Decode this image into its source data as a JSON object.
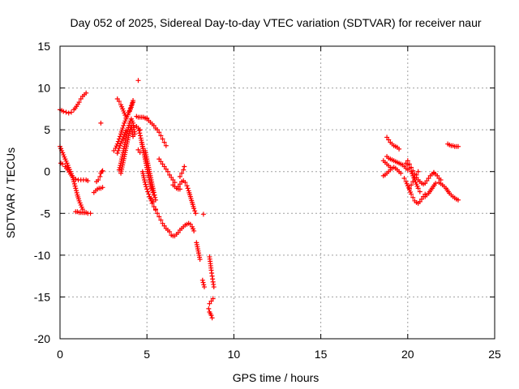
{
  "chart_data": {
    "type": "scatter",
    "title": "Day 052 of 2025, Sidereal Day-to-day VTEC variation (SDTVAR) for receiver naur",
    "xlabel": "GPS time / hours",
    "ylabel": "SDTVAR / TECUs",
    "xlim": [
      0,
      25
    ],
    "ylim": [
      -20,
      15
    ],
    "xticks": [
      0,
      5,
      10,
      15,
      20,
      25
    ],
    "yticks": [
      -20,
      -15,
      -10,
      -5,
      0,
      5,
      10,
      15
    ],
    "xtick_labels": [
      "0",
      "5",
      "10",
      "15",
      "20",
      "25"
    ],
    "ytick_labels": [
      "-20",
      "-15",
      "-10",
      "-5",
      "0",
      "5",
      "10",
      "15"
    ],
    "grid": true,
    "marker": "+",
    "series": [
      {
        "name": "SDTVAR",
        "color": "#ff0000",
        "segments": [
          {
            "x": [
              0.0,
              0.1,
              0.2,
              0.35,
              0.5,
              0.65,
              0.8,
              0.95,
              1.1,
              1.2,
              1.3,
              1.4,
              1.5
            ],
            "y": [
              7.4,
              7.3,
              7.2,
              7.1,
              7.0,
              7.1,
              7.4,
              7.8,
              8.3,
              8.7,
              9.0,
              9.2,
              9.4
            ]
          },
          {
            "x": [
              0.0,
              0.1,
              0.2,
              0.3,
              0.4,
              0.5,
              0.6,
              0.7,
              0.8,
              0.9,
              1.0,
              1.1,
              1.2,
              1.3,
              1.4
            ],
            "y": [
              3.0,
              2.5,
              2.0,
              1.5,
              1.0,
              0.5,
              0.0,
              -0.5,
              -1.2,
              -2.0,
              -2.8,
              -3.5,
              -4.0,
              -4.5,
              -4.9
            ]
          },
          {
            "x": [
              0.05,
              0.15,
              0.3,
              0.45,
              0.6,
              0.75,
              0.9,
              1.05,
              1.2,
              1.35,
              1.5,
              1.6
            ],
            "y": [
              1.0,
              0.9,
              0.6,
              0.2,
              -0.3,
              -0.7,
              -0.9,
              -1.0,
              -1.0,
              -1.0,
              -1.0,
              -1.1
            ]
          },
          {
            "x": [
              0.9,
              1.0,
              1.1,
              1.2,
              1.3,
              1.4,
              1.5,
              1.6,
              1.75
            ],
            "y": [
              -4.8,
              -4.8,
              -4.9,
              -4.9,
              -4.9,
              -4.9,
              -4.9,
              -5.0,
              -5.0
            ]
          },
          {
            "x": [
              1.95,
              2.05,
              2.15,
              2.25,
              2.35,
              2.45
            ],
            "y": [
              -2.5,
              -2.3,
              -2.1,
              -2.0,
              -2.0,
              -1.9
            ]
          },
          {
            "x": [
              2.1,
              2.2,
              2.3,
              2.35,
              2.4,
              2.45
            ],
            "y": [
              -1.2,
              -1.0,
              -0.6,
              -0.2,
              0.0,
              0.1
            ]
          },
          {
            "x": [
              2.35
            ],
            "y": [
              5.8
            ]
          },
          {
            "x": [
              3.1,
              3.2,
              3.3,
              3.4,
              3.5,
              3.6,
              3.7,
              3.8,
              3.9,
              4.0,
              4.1,
              4.2
            ],
            "y": [
              2.5,
              2.8,
              3.3,
              3.9,
              4.5,
              5.2,
              5.8,
              6.3,
              6.8,
              7.2,
              7.7,
              8.3
            ]
          },
          {
            "x": [
              3.3,
              3.4,
              3.5,
              3.6,
              3.7,
              3.8,
              3.9,
              4.0,
              4.1,
              4.2
            ],
            "y": [
              8.7,
              8.4,
              8.0,
              7.5,
              7.0,
              6.5,
              6.8,
              7.3,
              7.9,
              8.5
            ]
          },
          {
            "x": [
              3.4,
              3.5,
              3.6,
              3.7,
              3.8,
              3.9,
              4.0,
              4.1,
              4.2,
              4.3
            ],
            "y": [
              0.2,
              1.0,
              2.0,
              3.0,
              4.0,
              5.0,
              5.8,
              6.3,
              5.8,
              4.5
            ]
          },
          {
            "x": [
              3.5,
              3.6,
              3.7,
              3.8,
              3.9,
              4.0,
              4.1,
              4.2
            ],
            "y": [
              -0.2,
              0.8,
              1.8,
              2.8,
              3.8,
              4.8,
              5.5,
              4.2
            ]
          },
          {
            "x": [
              3.3,
              3.4,
              3.5,
              3.6,
              3.7,
              3.8
            ],
            "y": [
              2.2,
              2.8,
              3.4,
              3.9,
              4.4,
              4.9
            ]
          },
          {
            "x": [
              4.5
            ],
            "y": [
              10.9
            ]
          },
          {
            "x": [
              4.4,
              4.5,
              4.6,
              4.7,
              4.8,
              4.9,
              5.0
            ],
            "y": [
              6.6,
              6.5,
              6.5,
              6.5,
              6.5,
              6.4,
              6.4
            ]
          },
          {
            "x": [
              4.4,
              4.5,
              4.6
            ],
            "y": [
              5.4,
              5.2,
              5.0
            ]
          },
          {
            "x": [
              4.5,
              4.6
            ],
            "y": [
              2.6,
              2.3
            ]
          },
          {
            "x": [
              4.55,
              4.65,
              4.75,
              4.85,
              4.95,
              5.05,
              5.15,
              5.25,
              5.35
            ],
            "y": [
              4.9,
              4.0,
              3.0,
              2.0,
              1.0,
              0.0,
              -1.0,
              -2.0,
              -2.5
            ]
          },
          {
            "x": [
              4.7,
              4.8,
              4.9,
              5.0,
              5.1,
              5.2,
              5.3,
              5.4
            ],
            "y": [
              3.5,
              2.5,
              1.5,
              0.5,
              -0.5,
              -1.5,
              -2.2,
              -2.8
            ]
          },
          {
            "x": [
              4.75,
              4.85,
              4.95,
              5.05,
              5.15,
              5.25,
              5.35
            ],
            "y": [
              0.0,
              -1.0,
              -1.8,
              -2.4,
              -3.0,
              -3.3,
              -3.6
            ]
          },
          {
            "x": [
              4.9,
              5.0,
              5.1,
              5.2,
              5.3,
              5.4,
              5.5
            ],
            "y": [
              2.5,
              1.5,
              0.5,
              -0.5,
              -1.5,
              -2.5,
              -3.4
            ]
          },
          {
            "x": [
              5.0,
              5.2,
              5.4,
              5.5,
              5.6,
              5.7,
              5.8,
              5.9,
              6.0,
              6.1
            ],
            "y": [
              6.3,
              5.9,
              5.5,
              5.2,
              5.0,
              4.7,
              4.3,
              3.9,
              3.5,
              3.1
            ]
          },
          {
            "x": [
              5.2,
              5.3,
              5.4,
              5.5
            ],
            "y": [
              -3.2,
              -3.8,
              -4.2,
              -4.5
            ]
          },
          {
            "x": [
              5.5,
              5.6,
              5.7,
              5.8,
              5.9,
              6.0,
              6.1,
              6.2,
              6.3
            ],
            "y": [
              -4.6,
              -5.0,
              -5.4,
              -5.8,
              -6.2,
              -6.5,
              -6.8,
              -7.0,
              -7.2
            ]
          },
          {
            "x": [
              5.7,
              5.8,
              5.9,
              6.0,
              6.1,
              6.2
            ],
            "y": [
              1.5,
              1.2,
              0.9,
              0.6,
              0.3,
              0.0
            ]
          },
          {
            "x": [
              6.4,
              6.5,
              6.6,
              6.7,
              6.8,
              6.9,
              7.0,
              7.1,
              7.2,
              7.3,
              7.4,
              7.5,
              7.6,
              7.7
            ],
            "y": [
              -7.6,
              -7.7,
              -7.7,
              -7.5,
              -7.3,
              -7.0,
              -6.8,
              -6.6,
              -6.4,
              -6.3,
              -6.2,
              -6.3,
              -6.6,
              -7.1
            ]
          },
          {
            "x": [
              6.3,
              6.4,
              6.5,
              6.6
            ],
            "y": [
              -0.4,
              -0.7,
              -1.0,
              -1.3
            ]
          },
          {
            "x": [
              6.5,
              6.6,
              6.7,
              6.8,
              6.9
            ],
            "y": [
              -1.6,
              -1.8,
              -2.0,
              -2.1,
              -2.1
            ]
          },
          {
            "x": [
              6.9,
              7.0,
              7.1,
              7.15
            ],
            "y": [
              -0.6,
              -0.2,
              0.2,
              0.6
            ]
          },
          {
            "x": [
              6.8,
              6.9,
              7.0,
              7.1,
              7.2,
              7.3,
              7.4,
              7.5,
              7.6,
              7.7,
              7.8
            ],
            "y": [
              -1.8,
              -1.5,
              -1.2,
              -1.1,
              -1.3,
              -1.7,
              -2.3,
              -3.0,
              -3.7,
              -4.4,
              -5.0
            ]
          },
          {
            "x": [
              7.85,
              7.9,
              7.95,
              8.0,
              8.05
            ],
            "y": [
              -8.5,
              -9.0,
              -9.5,
              -10.0,
              -10.5
            ]
          },
          {
            "x": [
              8.25
            ],
            "y": [
              -5.1
            ]
          },
          {
            "x": [
              8.2,
              8.3
            ],
            "y": [
              -13.0,
              -13.8
            ]
          },
          {
            "x": [
              8.6,
              8.65,
              8.7,
              8.75,
              8.8,
              8.85
            ],
            "y": [
              -10.2,
              -11.0,
              -11.8,
              -12.5,
              -13.2,
              -13.8
            ]
          },
          {
            "x": [
              8.6,
              8.7,
              8.8
            ],
            "y": [
              -15.8,
              -15.5,
              -15.2
            ]
          },
          {
            "x": [
              8.55,
              8.6,
              8.65,
              8.7,
              8.75
            ],
            "y": [
              -16.4,
              -16.8,
              -17.0,
              -17.2,
              -17.5
            ]
          },
          {
            "x": [
              18.6,
              18.7,
              18.8,
              18.9,
              19.0,
              19.1,
              19.2,
              19.3,
              19.4,
              19.5,
              19.6
            ],
            "y": [
              -0.5,
              -0.4,
              -0.2,
              0.0,
              0.2,
              0.4,
              0.5,
              0.4,
              0.2,
              0.0,
              -0.2
            ]
          },
          {
            "x": [
              18.6,
              18.7,
              18.8,
              18.9,
              19.0
            ],
            "y": [
              1.3,
              1.1,
              0.9,
              0.7,
              0.5
            ]
          },
          {
            "x": [
              18.8,
              18.9,
              19.0,
              19.1,
              19.2,
              19.3,
              19.4,
              19.5,
              19.6,
              19.7,
              19.8,
              19.9,
              20.0
            ],
            "y": [
              1.8,
              1.6,
              1.5,
              1.4,
              1.3,
              1.2,
              1.1,
              1.0,
              0.9,
              0.8,
              0.6,
              0.4,
              0.2
            ]
          },
          {
            "x": [
              18.8,
              18.9,
              19.0,
              19.1,
              19.2,
              19.3,
              19.4,
              19.5
            ],
            "y": [
              4.1,
              3.8,
              3.5,
              3.3,
              3.1,
              3.0,
              2.9,
              2.7
            ]
          },
          {
            "x": [
              19.8,
              19.9,
              20.0,
              20.1,
              20.2,
              20.3,
              20.4,
              20.5,
              20.6,
              20.7,
              20.8,
              20.9,
              21.0
            ],
            "y": [
              -0.8,
              -1.2,
              -1.7,
              -2.2,
              -2.7,
              -3.1,
              -3.5,
              -3.7,
              -3.8,
              -3.6,
              -3.3,
              -3.0,
              -2.7
            ]
          },
          {
            "x": [
              19.9,
              20.0,
              20.1,
              20.2,
              20.3,
              20.4,
              20.5,
              20.6,
              20.7
            ],
            "y": [
              1.0,
              0.8,
              0.4,
              0.0,
              -0.5,
              -1.0,
              -1.5,
              -2.0,
              -2.4
            ]
          },
          {
            "x": [
              20.0,
              20.1,
              20.2,
              20.3,
              20.4,
              20.5,
              20.6,
              20.7,
              20.8,
              20.9,
              21.0,
              21.1,
              21.2,
              21.3,
              21.4,
              21.5
            ],
            "y": [
              1.3,
              0.9,
              0.5,
              0.1,
              -0.3,
              -0.7,
              -1.0,
              -1.2,
              -1.4,
              -1.5,
              -1.4,
              -1.1,
              -0.8,
              -0.5,
              -0.3,
              -0.1
            ]
          },
          {
            "x": [
              20.1,
              20.2,
              20.3,
              20.4,
              20.5,
              20.6
            ],
            "y": [
              -2.0,
              -1.6,
              -1.2,
              -0.8,
              -0.4,
              0.0
            ]
          },
          {
            "x": [
              21.0,
              21.2,
              21.4,
              21.6,
              21.8,
              22.0,
              22.2,
              22.4,
              22.6,
              22.8,
              22.9
            ],
            "y": [
              -3.0,
              -2.6,
              -2.0,
              -1.4,
              -1.3,
              -1.6,
              -2.0,
              -2.6,
              -3.0,
              -3.3,
              -3.4
            ]
          },
          {
            "x": [
              21.5,
              21.6,
              21.7,
              21.8,
              21.9
            ],
            "y": [
              -0.2,
              -0.3,
              -0.5,
              -0.8,
              -1.0
            ]
          },
          {
            "x": [
              22.3,
              22.4,
              22.5,
              22.6,
              22.7,
              22.8,
              22.9
            ],
            "y": [
              3.3,
              3.2,
              3.1,
              3.1,
              3.0,
              3.0,
              3.0
            ]
          }
        ]
      }
    ]
  }
}
